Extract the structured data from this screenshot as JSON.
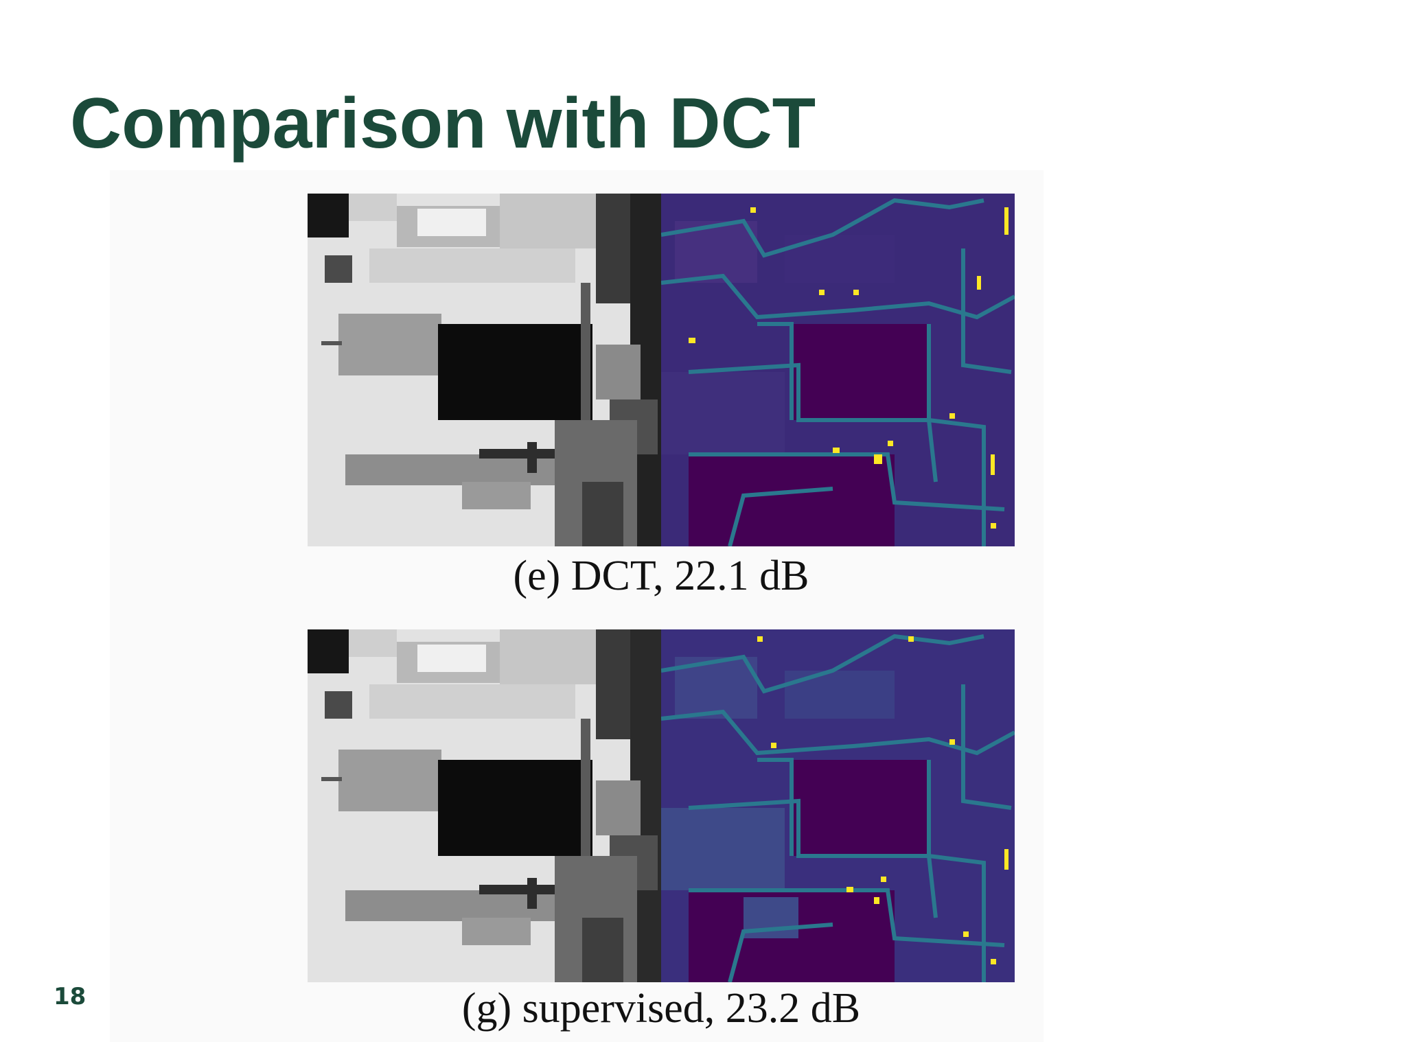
{
  "slide": {
    "title": "Comparison with DCT",
    "page_number": "18"
  },
  "figures": [
    {
      "caption": "(e) DCT, 22.1 dB",
      "left_image": "grayscale reconstruction",
      "right_image": "error heatmap (viridis)"
    },
    {
      "caption": "(g) supervised, 23.2 dB",
      "left_image": "grayscale reconstruction",
      "right_image": "error heatmap (viridis)"
    }
  ],
  "colors": {
    "title": "#1b4a3a",
    "heatmap_low": "#440154",
    "heatmap_mid": "#21918c",
    "heatmap_high": "#fde725"
  }
}
